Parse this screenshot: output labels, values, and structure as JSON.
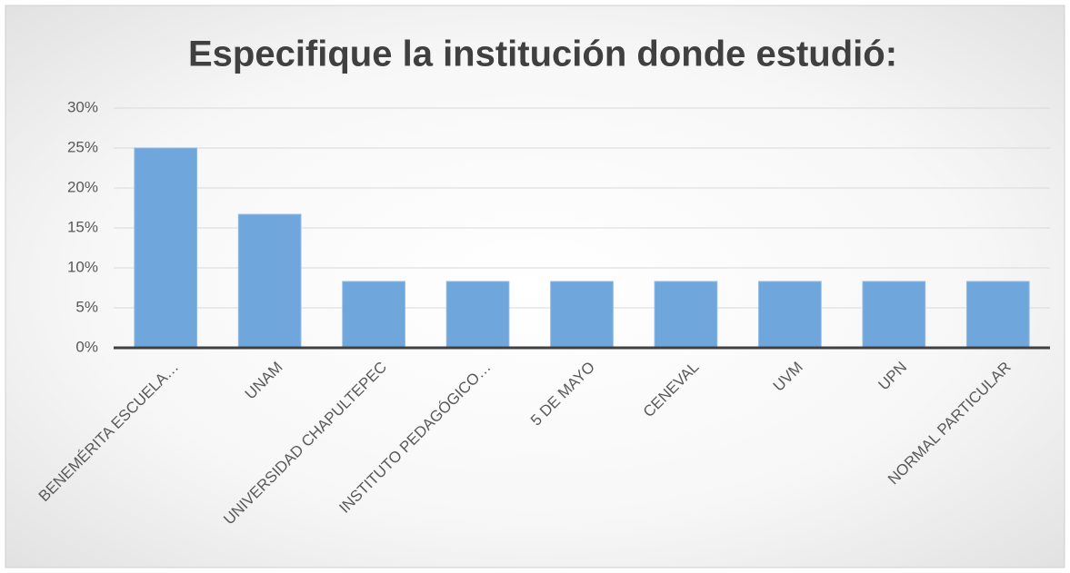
{
  "chart_data": {
    "type": "bar",
    "title": "Especifique la institución donde estudió:",
    "categories": [
      "BENEMÉRITA ESCUELA…",
      "UNAM",
      "UNIVERSIDAD CHAPULTEPEC",
      "INSTITUTO PEDAGÓGICO…",
      "5 DE MAYO",
      "CENEVAL",
      "UVM",
      "UPN",
      "NORMAL PARTICULAR"
    ],
    "values": [
      25,
      16.7,
      8.3,
      8.3,
      8.3,
      8.3,
      8.3,
      8.3,
      8.3
    ],
    "color": "#6fa6dc",
    "ylim": [
      0,
      30
    ],
    "yticks": [
      {
        "value": 0,
        "label": "0%"
      },
      {
        "value": 5,
        "label": "5%"
      },
      {
        "value": 10,
        "label": "10%"
      },
      {
        "value": 15,
        "label": "15%"
      },
      {
        "value": 20,
        "label": "20%"
      },
      {
        "value": 25,
        "label": "25%"
      },
      {
        "value": 30,
        "label": "30%"
      }
    ],
    "grid": true
  }
}
